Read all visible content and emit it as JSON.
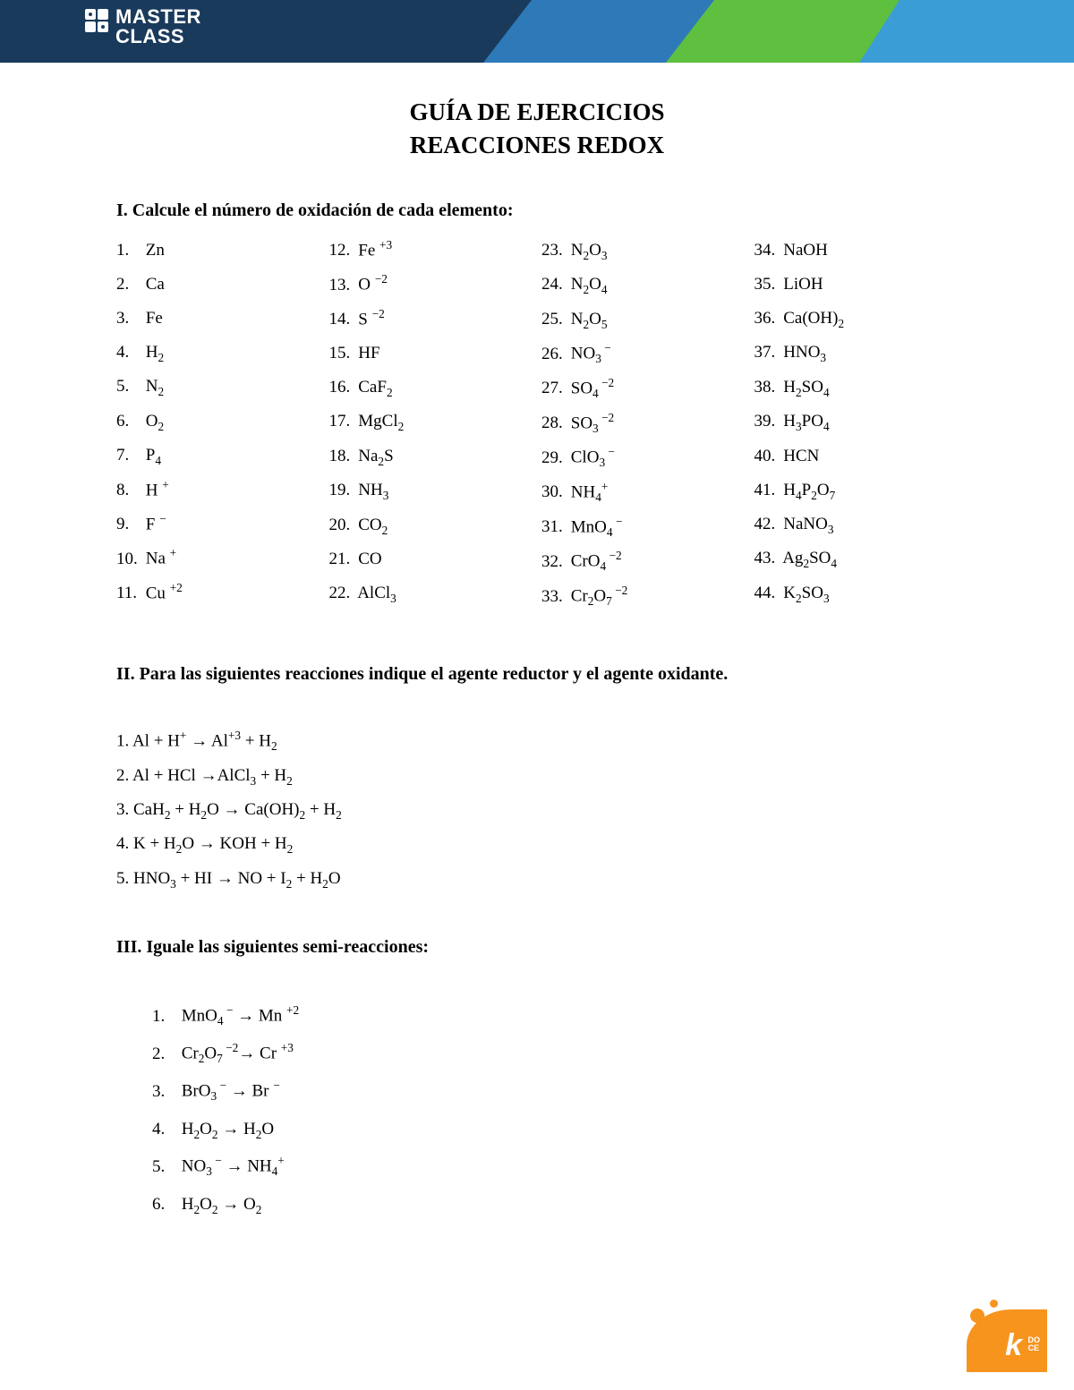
{
  "logo": {
    "line1": "MASTER",
    "line2": "CLASS"
  },
  "title": "GUÍA DE EJERCICIOS",
  "subtitle": "REACCIONES REDOX",
  "section1": {
    "heading": "I. Calcule el número de oxidación de cada elemento:",
    "columns": [
      [
        {
          "n": "1.",
          "base": "Zn"
        },
        {
          "n": "2.",
          "base": "Ca"
        },
        {
          "n": "3.",
          "base": "Fe"
        },
        {
          "n": "4.",
          "base": "H",
          "sub": "2"
        },
        {
          "n": "5.",
          "base": "N",
          "sub": "2"
        },
        {
          "n": "6.",
          "base": "O",
          "sub": "2"
        },
        {
          "n": "7.",
          "base": "P",
          "sub": "4"
        },
        {
          "n": "8.",
          "base": "H",
          "sup": "+"
        },
        {
          "n": "9.",
          "base": "F",
          "sup": "−"
        },
        {
          "n": "10.",
          "base": "Na",
          "sup": "+"
        },
        {
          "n": "11.",
          "base": "Cu",
          "sup": "+2"
        }
      ],
      [
        {
          "n": "12.",
          "base": "Fe",
          "sup": "+3"
        },
        {
          "n": "13.",
          "base": "O",
          "sup": "−2"
        },
        {
          "n": "14.",
          "base": "S",
          "sup": "−2"
        },
        {
          "n": "15.",
          "base": "HF"
        },
        {
          "n": "16.",
          "base": "CaF",
          "sub": "2"
        },
        {
          "n": "17.",
          "base": "MgCl",
          "sub": "2"
        },
        {
          "n": "18.",
          "raw": "Na<sub>2</sub>S"
        },
        {
          "n": "19.",
          "raw": "NH<sub>3</sub>"
        },
        {
          "n": "20.",
          "raw": "CO<sub>2</sub>"
        },
        {
          "n": "21.",
          "base": "CO"
        },
        {
          "n": "22.",
          "raw": "AlCl<sub>3</sub>"
        }
      ],
      [
        {
          "n": "23.",
          "raw": "N<sub>2</sub>O<sub>3</sub>"
        },
        {
          "n": "24.",
          "raw": "N<sub>2</sub>O<sub>4</sub>"
        },
        {
          "n": "25.",
          "raw": "N<sub>2</sub>O<sub>5</sub>"
        },
        {
          "n": "26.",
          "raw": "NO<sub>3</sub><sup> −</sup>"
        },
        {
          "n": "27.",
          "raw": "SO<sub>4</sub><sup> −2</sup>"
        },
        {
          "n": "28.",
          "raw": "SO<sub>3</sub><sup> −2</sup>"
        },
        {
          "n": "29.",
          "raw": "ClO<sub>3</sub><sup> −</sup>"
        },
        {
          "n": "30.",
          "raw": "NH<sub>4</sub><sup>+</sup>"
        },
        {
          "n": "31.",
          "raw": "MnO<sub>4</sub><sup> −</sup>"
        },
        {
          "n": "32.",
          "raw": "CrO<sub>4</sub><sup> −2</sup>"
        },
        {
          "n": "33.",
          "raw": "Cr<sub>2</sub>O<sub>7</sub><sup> −2</sup>"
        }
      ],
      [
        {
          "n": "34.",
          "base": "NaOH"
        },
        {
          "n": "35.",
          "base": "LiOH"
        },
        {
          "n": "36.",
          "raw": "Ca(OH)<sub>2</sub>"
        },
        {
          "n": "37.",
          "raw": "HNO<sub>3</sub>"
        },
        {
          "n": "38.",
          "raw": "H<sub>2</sub>SO<sub>4</sub>"
        },
        {
          "n": "39.",
          "raw": "H<sub>3</sub>PO<sub>4</sub>"
        },
        {
          "n": "40.",
          "base": "HCN"
        },
        {
          "n": "41.",
          "raw": "H<sub>4</sub>P<sub>2</sub>O<sub>7</sub>"
        },
        {
          "n": "42.",
          "raw": "NaNO<sub>3</sub>"
        },
        {
          "n": "43.",
          "raw": "Ag<sub>2</sub>SO<sub>4</sub>"
        },
        {
          "n": "44.",
          "raw": "K<sub>2</sub>SO<sub>3</sub>"
        }
      ]
    ]
  },
  "section2": {
    "heading": "II. Para las siguientes reacciones indique el agente reductor y el agente oxidante.",
    "items": [
      "1. Al + H<sup>+</sup> → Al<sup>+3</sup> + H<sub>2</sub>",
      "2. Al + HCl →AlCl<sub>3</sub> + H<sub>2</sub>",
      "3. CaH<sub>2</sub> + H<sub>2</sub>O → Ca(OH)<sub>2</sub> + H<sub>2</sub>",
      "4. K + H<sub>2</sub>O → KOH + H<sub>2</sub>",
      "5. HNO<sub>3</sub> + HI → NO + I<sub>2</sub> + H<sub>2</sub>O"
    ]
  },
  "section3": {
    "heading": "III. Iguale las siguientes semi-reacciones:",
    "items": [
      {
        "n": "1.",
        "raw": "MnO<sub>4</sub><sup> −</sup> → Mn <sup>+2</sup>"
      },
      {
        "n": "2.",
        "raw": "Cr<sub>2</sub>O<sub>7</sub><sup> −2</sup>→ Cr <sup>+3</sup>"
      },
      {
        "n": "3.",
        "raw": "BrO<sub>3</sub><sup> −</sup>  → Br <sup>−</sup>"
      },
      {
        "n": "4.",
        "raw": "H<sub>2</sub>O<sub>2</sub> → H<sub>2</sub>O"
      },
      {
        "n": "5.",
        "raw": "NO<sub>3</sub><sup> −</sup> → NH<sub>4</sub><sup>+</sup>"
      },
      {
        "n": "6.",
        "raw": "H<sub>2</sub>O<sub>2</sub> → O<sub>2</sub>"
      }
    ]
  },
  "footer": {
    "k": "k",
    "small1": "DO",
    "small2": "CE"
  },
  "colors": {
    "banner_dark": "#1a3a5c",
    "banner_blue": "#2e7ab8",
    "banner_green": "#5fbf3f",
    "banner_light": "#3b9dd6",
    "footer_orange": "#f7941e"
  }
}
